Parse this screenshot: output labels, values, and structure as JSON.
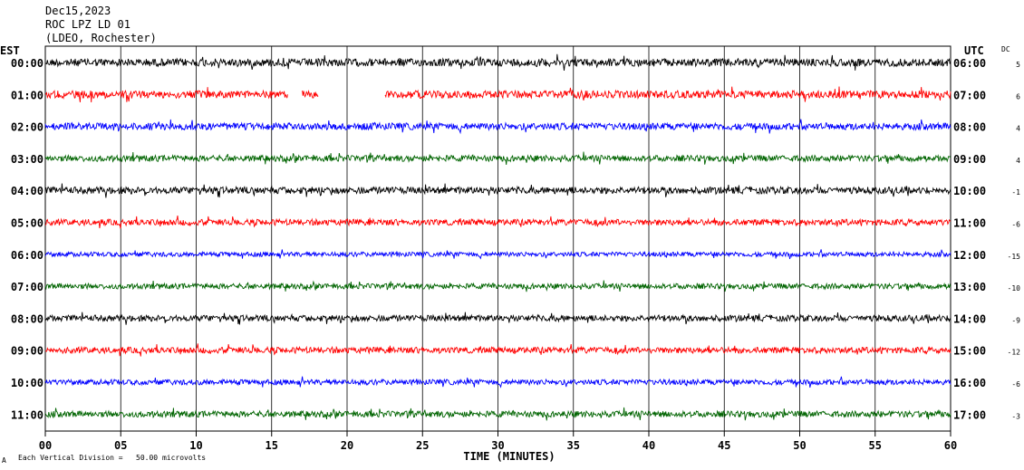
{
  "header": {
    "date": "Dec15,2023",
    "station": "ROC LPZ LD 01",
    "network": "(LDEO, Rochester)"
  },
  "left_axis_label": "EST",
  "right_axis_label": "UTC",
  "dc_label": "DC",
  "footer": {
    "scale_note": "Each Vertical Division =   50.00 microvolts"
  },
  "colors": {
    "black": "#000000",
    "red": "#ff0000",
    "blue": "#0000ff",
    "green": "#006400"
  },
  "chart_data": {
    "type": "line",
    "title": "ROC LPZ LD 01",
    "xlabel": "TIME (MINUTES)",
    "ylabel": "",
    "xlim": [
      0,
      60
    ],
    "x_ticks": [
      "00",
      "05",
      "10",
      "15",
      "20",
      "25",
      "30",
      "35",
      "40",
      "45",
      "50",
      "55",
      "60"
    ],
    "grid": true,
    "series": [
      {
        "est": "00:00",
        "utc": "06:00",
        "dc": "5",
        "color": "black",
        "amplitude": 1.0,
        "gaps": []
      },
      {
        "est": "01:00",
        "utc": "07:00",
        "dc": "6",
        "color": "red",
        "amplitude": 1.0,
        "gaps": [
          [
            16.1,
            17.0
          ],
          [
            18.1,
            22.5
          ]
        ]
      },
      {
        "est": "02:00",
        "utc": "08:00",
        "dc": "4",
        "color": "blue",
        "amplitude": 0.9,
        "gaps": []
      },
      {
        "est": "03:00",
        "utc": "09:00",
        "dc": "4",
        "color": "green",
        "amplitude": 0.8,
        "gaps": []
      },
      {
        "est": "04:00",
        "utc": "10:00",
        "dc": "-1",
        "color": "black",
        "amplitude": 0.9,
        "gaps": []
      },
      {
        "est": "05:00",
        "utc": "11:00",
        "dc": "-6",
        "color": "red",
        "amplitude": 0.8,
        "gaps": []
      },
      {
        "est": "06:00",
        "utc": "12:00",
        "dc": "-15",
        "color": "blue",
        "amplitude": 0.6,
        "gaps": []
      },
      {
        "est": "07:00",
        "utc": "13:00",
        "dc": "-10",
        "color": "green",
        "amplitude": 0.7,
        "gaps": []
      },
      {
        "est": "08:00",
        "utc": "14:00",
        "dc": "-9",
        "color": "black",
        "amplitude": 0.8,
        "gaps": []
      },
      {
        "est": "09:00",
        "utc": "15:00",
        "dc": "-12",
        "color": "red",
        "amplitude": 0.8,
        "gaps": []
      },
      {
        "est": "10:00",
        "utc": "16:00",
        "dc": "-6",
        "color": "blue",
        "amplitude": 0.7,
        "gaps": []
      },
      {
        "est": "11:00",
        "utc": "17:00",
        "dc": "-3",
        "color": "green",
        "amplitude": 0.8,
        "gaps": []
      }
    ]
  }
}
